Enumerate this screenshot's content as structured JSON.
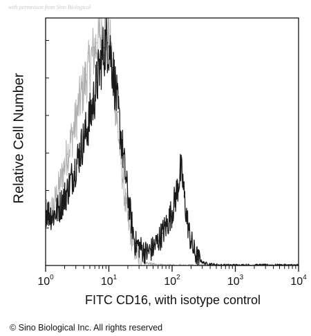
{
  "watermark": "with permission from Sino Biological",
  "chart_data": {
    "type": "line",
    "title": "",
    "xlabel": "FITC CD16, with isotype control",
    "ylabel": "Relative Cell Number",
    "xscale": "log",
    "xlim": [
      1,
      10000
    ],
    "x_ticks": [
      {
        "base": "10",
        "exp": "0"
      },
      {
        "base": "10",
        "exp": "1"
      },
      {
        "base": "10",
        "exp": "2"
      },
      {
        "base": "10",
        "exp": "3"
      },
      {
        "base": "10",
        "exp": "4"
      }
    ],
    "ylim": [
      0,
      1
    ],
    "grid": false,
    "legend": "none",
    "series": [
      {
        "role": "isotype control",
        "color": "#b0b0b0",
        "x": [
          1.0,
          1.3,
          1.7,
          2.2,
          2.8,
          3.5,
          4.5,
          5.5,
          6.5,
          7.5,
          8.5,
          9.5,
          10.5,
          11.5,
          12.5,
          14,
          16,
          18,
          20,
          23,
          26,
          30,
          35,
          40,
          50,
          70,
          100,
          200,
          1000,
          10000
        ],
        "y": [
          0.2,
          0.23,
          0.33,
          0.45,
          0.55,
          0.67,
          0.77,
          0.85,
          0.9,
          0.93,
          0.95,
          0.94,
          0.88,
          0.79,
          0.68,
          0.54,
          0.4,
          0.27,
          0.18,
          0.11,
          0.06,
          0.03,
          0.015,
          0.01,
          0.005,
          0.0,
          0.0,
          0.0,
          0.0,
          0.0
        ]
      },
      {
        "role": "FITC CD16",
        "color": "#1a1a1a",
        "x": [
          1.0,
          1.3,
          1.7,
          2.2,
          2.8,
          3.5,
          4.5,
          5.5,
          6.5,
          7.5,
          8.5,
          9.5,
          10.5,
          11.5,
          12.5,
          14,
          16,
          18,
          20,
          23,
          26,
          30,
          35,
          40,
          50,
          60,
          70,
          85,
          100,
          115,
          125,
          135,
          145,
          155,
          170,
          190,
          220,
          260,
          320,
          400,
          600,
          1000,
          10000
        ],
        "y": [
          0.22,
          0.2,
          0.24,
          0.3,
          0.38,
          0.46,
          0.55,
          0.64,
          0.74,
          0.82,
          0.88,
          0.9,
          0.87,
          0.8,
          0.73,
          0.62,
          0.5,
          0.38,
          0.28,
          0.17,
          0.09,
          0.08,
          0.06,
          0.05,
          0.07,
          0.1,
          0.13,
          0.17,
          0.22,
          0.28,
          0.33,
          0.38,
          0.36,
          0.28,
          0.2,
          0.12,
          0.06,
          0.025,
          0.01,
          0.005,
          0.0,
          0.0,
          0.0
        ]
      }
    ]
  },
  "copyright": "© Sino Biological Inc. All rights reserved"
}
